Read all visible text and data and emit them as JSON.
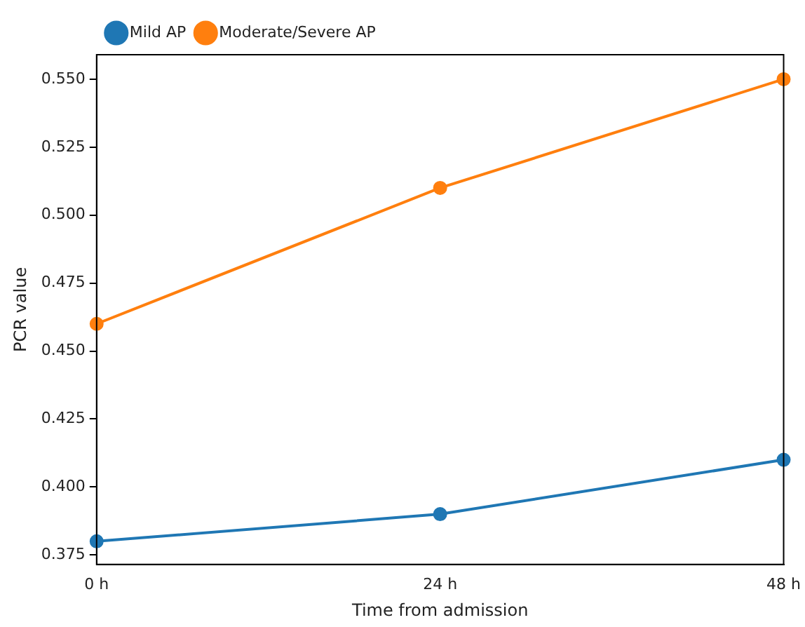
{
  "chart_data": {
    "type": "line",
    "xlabel": "Time from admission",
    "ylabel": "PCR value",
    "categories": [
      "0 h",
      "24 h",
      "48 h"
    ],
    "series": [
      {
        "name": "Mild AP",
        "color": "#1f77b4",
        "values": [
          0.38,
          0.39,
          0.41
        ]
      },
      {
        "name": "Moderate/Severe AP",
        "color": "#ff7f0e",
        "values": [
          0.46,
          0.51,
          0.55
        ]
      }
    ],
    "ylim": [
      0.3715,
      0.559
    ],
    "yticks": [
      {
        "value": 0.375,
        "label": "0.375"
      },
      {
        "value": 0.4,
        "label": "0.400"
      },
      {
        "value": 0.425,
        "label": "0.425"
      },
      {
        "value": 0.45,
        "label": "0.450"
      },
      {
        "value": 0.475,
        "label": "0.475"
      },
      {
        "value": 0.5,
        "label": "0.500"
      },
      {
        "value": 0.525,
        "label": "0.525"
      },
      {
        "value": 0.55,
        "label": "0.550"
      }
    ],
    "grid": false,
    "legend": "top left",
    "marker": "circle",
    "line_style": "solid"
  }
}
